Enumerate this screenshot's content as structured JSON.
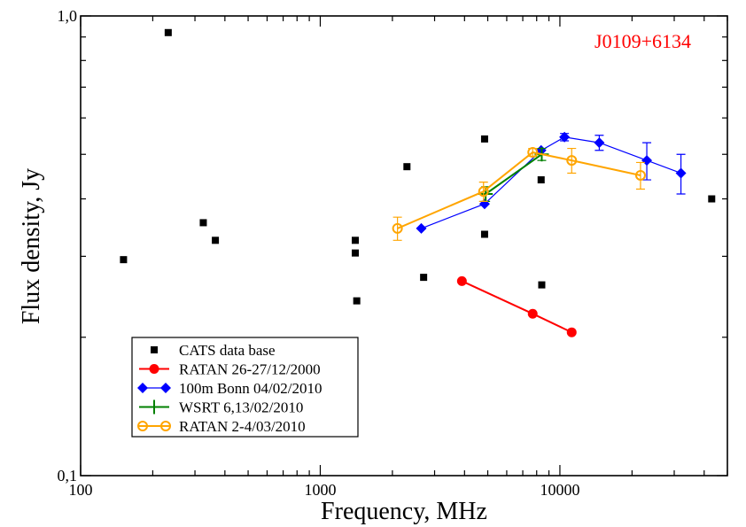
{
  "chart_data": {
    "type": "scatter",
    "title": "",
    "annotation": "J0109+6134",
    "annotation_color": "#ff0000",
    "xlabel": "Frequency, MHz",
    "ylabel": "Flux density, Jy",
    "x_scale": "log",
    "y_scale": "log",
    "xlim": [
      100,
      50000
    ],
    "ylim": [
      0.1,
      1.0
    ],
    "x_ticks": [
      {
        "value": 100,
        "label": "100"
      },
      {
        "value": 1000,
        "label": "1000"
      },
      {
        "value": 10000,
        "label": "10000"
      }
    ],
    "y_ticks": [
      {
        "value": 0.1,
        "label": "0,1"
      },
      {
        "value": 1.0,
        "label": "1,0"
      }
    ],
    "grid": false,
    "legend_position": "bottom-left",
    "series": [
      {
        "name": "CATS data base",
        "color": "#000000",
        "marker": "square",
        "line": false,
        "points": [
          {
            "x": 151,
            "y": 0.295
          },
          {
            "x": 232,
            "y": 0.92
          },
          {
            "x": 325,
            "y": 0.355
          },
          {
            "x": 365,
            "y": 0.325
          },
          {
            "x": 1400,
            "y": 0.325
          },
          {
            "x": 1400,
            "y": 0.305
          },
          {
            "x": 1420,
            "y": 0.24
          },
          {
            "x": 2300,
            "y": 0.47
          },
          {
            "x": 2700,
            "y": 0.27
          },
          {
            "x": 4850,
            "y": 0.54
          },
          {
            "x": 4850,
            "y": 0.335
          },
          {
            "x": 8350,
            "y": 0.44
          },
          {
            "x": 8400,
            "y": 0.26
          },
          {
            "x": 43000,
            "y": 0.4
          }
        ]
      },
      {
        "name": "RATAN  26-27/12/2000",
        "color": "#ff0000",
        "marker": "filled-circle",
        "line": true,
        "points": [
          {
            "x": 3900,
            "y": 0.265
          },
          {
            "x": 7700,
            "y": 0.225
          },
          {
            "x": 11200,
            "y": 0.205
          }
        ]
      },
      {
        "name": "100m Bonn 04/02/2010",
        "color": "#0000ff",
        "marker": "diamond",
        "line": true,
        "points": [
          {
            "x": 2640,
            "y": 0.345
          },
          {
            "x": 4850,
            "y": 0.39
          },
          {
            "x": 8350,
            "y": 0.51
          },
          {
            "x": 10450,
            "y": 0.545,
            "err": 0.01
          },
          {
            "x": 14600,
            "y": 0.53,
            "err": 0.02
          },
          {
            "x": 23050,
            "y": 0.485,
            "err": 0.045
          },
          {
            "x": 32000,
            "y": 0.455,
            "err": 0.045
          }
        ]
      },
      {
        "name": "WSRT 6,13/02/2010",
        "color": "#008000",
        "marker": "plus",
        "line": true,
        "points": [
          {
            "x": 4900,
            "y": 0.41,
            "err": 0.015
          },
          {
            "x": 8400,
            "y": 0.5,
            "err": 0.015
          }
        ]
      },
      {
        "name": "RATAN  2-4/03/2010",
        "color": "#ffa500",
        "marker": "open-circle",
        "line": true,
        "points": [
          {
            "x": 2100,
            "y": 0.345,
            "err": 0.02
          },
          {
            "x": 4800,
            "y": 0.415,
            "err": 0.02
          },
          {
            "x": 7700,
            "y": 0.505,
            "err": 0.01
          },
          {
            "x": 11200,
            "y": 0.485,
            "err": 0.03
          },
          {
            "x": 21700,
            "y": 0.45,
            "err": 0.03
          }
        ]
      }
    ]
  }
}
